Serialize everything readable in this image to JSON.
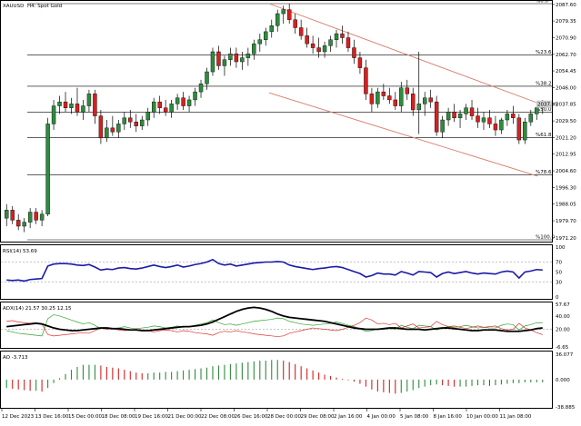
{
  "header": {
    "symbol": "XAUUSD",
    "timeframe_desc": "H4: Spot Gold"
  },
  "colors": {
    "bull": "#2e8b3e",
    "bear": "#d62020",
    "grid": "#000000",
    "channel": "#d97a6c",
    "rsi": "#1a1aa8",
    "adx": "#000000",
    "plus_di": "#2fa02f",
    "minus_di": "#e03030",
    "price_tag_bg": "#cfcfcf"
  },
  "chart_data": [
    {
      "type": "candlestick",
      "ylim": [
        1970.2,
        2088
      ],
      "y_ticks": [
        "2087.60",
        "2079.35",
        "2070.90",
        "2062.70",
        "2054.45",
        "2046.00",
        "2037.85",
        "2029.50",
        "2021.20",
        "2012.95",
        "2004.60",
        "1996.30",
        "1988.05",
        "1979.70",
        "1971.20"
      ],
      "price_tag": "2037.85",
      "current_price": 2037.85,
      "fib_levels": [
        {
          "label": "%0.0",
          "value": 2088.0
        },
        {
          "label": "%23.6",
          "value": 2062.3
        },
        {
          "label": "%38.2",
          "value": 2046.8
        },
        {
          "label": "%50.0",
          "value": 2033.9
        },
        {
          "label": "%61.8",
          "value": 2021.1
        },
        {
          "label": "%78.6",
          "value": 2002.7
        },
        {
          "label": "%100.0",
          "value": 1970.2
        }
      ],
      "channel_upper": [
        [
          0.49,
          2088.0
        ],
        [
          0.985,
          2038.5
        ]
      ],
      "channel_lower": [
        [
          0.49,
          2043.5
        ],
        [
          0.985,
          2002.0
        ]
      ],
      "candles": [
        [
          1981,
          1988,
          1977,
          1985
        ],
        [
          1985,
          1987,
          1978,
          1980
        ],
        [
          1980,
          1983,
          1975,
          1977
        ],
        [
          1977,
          1981,
          1974,
          1979
        ],
        [
          1979,
          1986,
          1976,
          1984
        ],
        [
          1984,
          1986,
          1978,
          1980
        ],
        [
          1980,
          1985,
          1977,
          1983
        ],
        [
          1983,
          2031,
          1982,
          2028
        ],
        [
          2028,
          2040,
          2025,
          2037
        ],
        [
          2037,
          2042,
          2033,
          2039
        ],
        [
          2039,
          2044,
          2034,
          2036
        ],
        [
          2036,
          2041,
          2033,
          2038
        ],
        [
          2038,
          2046,
          2032,
          2034
        ],
        [
          2034,
          2040,
          2030,
          2037
        ],
        [
          2037,
          2045,
          2034,
          2043
        ],
        [
          2043,
          2045,
          2028,
          2032
        ],
        [
          2032,
          2035,
          2018,
          2021
        ],
        [
          2021,
          2030,
          2019,
          2026
        ],
        [
          2026,
          2032,
          2022,
          2024
        ],
        [
          2024,
          2030,
          2021,
          2028
        ],
        [
          2028,
          2034,
          2025,
          2031
        ],
        [
          2031,
          2035,
          2026,
          2029
        ],
        [
          2029,
          2033,
          2024,
          2027
        ],
        [
          2027,
          2032,
          2025,
          2030
        ],
        [
          2030,
          2036,
          2027,
          2034
        ],
        [
          2034,
          2041,
          2031,
          2039
        ],
        [
          2039,
          2042,
          2033,
          2036
        ],
        [
          2036,
          2040,
          2032,
          2034
        ],
        [
          2034,
          2040,
          2031,
          2038
        ],
        [
          2038,
          2043,
          2035,
          2041
        ],
        [
          2041,
          2044,
          2035,
          2037
        ],
        [
          2037,
          2042,
          2034,
          2040
        ],
        [
          2040,
          2046,
          2037,
          2044
        ],
        [
          2044,
          2050,
          2041,
          2048
        ],
        [
          2048,
          2056,
          2045,
          2054
        ],
        [
          2054,
          2066,
          2052,
          2064
        ],
        [
          2064,
          2067,
          2055,
          2057
        ],
        [
          2057,
          2062,
          2052,
          2060
        ],
        [
          2060,
          2066,
          2057,
          2063
        ],
        [
          2063,
          2066,
          2056,
          2059
        ],
        [
          2059,
          2064,
          2055,
          2061
        ],
        [
          2061,
          2066,
          2057,
          2063
        ],
        [
          2063,
          2070,
          2060,
          2068
        ],
        [
          2068,
          2073,
          2064,
          2070
        ],
        [
          2070,
          2076,
          2067,
          2074
        ],
        [
          2074,
          2080,
          2071,
          2077
        ],
        [
          2077,
          2085,
          2074,
          2083
        ],
        [
          2083,
          2087,
          2078,
          2085
        ],
        [
          2085,
          2088,
          2078,
          2080
        ],
        [
          2080,
          2083,
          2073,
          2076
        ],
        [
          2076,
          2080,
          2070,
          2072
        ],
        [
          2072,
          2076,
          2066,
          2068
        ],
        [
          2068,
          2072,
          2063,
          2066
        ],
        [
          2066,
          2071,
          2061,
          2064
        ],
        [
          2064,
          2069,
          2061,
          2067
        ],
        [
          2067,
          2072,
          2064,
          2070
        ],
        [
          2070,
          2075,
          2066,
          2073
        ],
        [
          2073,
          2077,
          2068,
          2071
        ],
        [
          2071,
          2074,
          2064,
          2066
        ],
        [
          2066,
          2070,
          2058,
          2061
        ],
        [
          2061,
          2064,
          2053,
          2056
        ],
        [
          2056,
          2060,
          2040,
          2043
        ],
        [
          2043,
          2046,
          2034,
          2038
        ],
        [
          2038,
          2046,
          2036,
          2044
        ],
        [
          2044,
          2048,
          2040,
          2042
        ],
        [
          2042,
          2046,
          2038,
          2040
        ],
        [
          2040,
          2044,
          2035,
          2037
        ],
        [
          2037,
          2049,
          2034,
          2046
        ],
        [
          2046,
          2050,
          2040,
          2043
        ],
        [
          2043,
          2046,
          2032,
          2035
        ],
        [
          2035,
          2064,
          2023,
          2038
        ],
        [
          2038,
          2044,
          2032,
          2041
        ],
        [
          2041,
          2045,
          2036,
          2039
        ],
        [
          2039,
          2042,
          2022,
          2024
        ],
        [
          2024,
          2032,
          2021,
          2030
        ],
        [
          2030,
          2036,
          2027,
          2034
        ],
        [
          2034,
          2038,
          2029,
          2031
        ],
        [
          2031,
          2035,
          2026,
          2033
        ],
        [
          2033,
          2038,
          2030,
          2036
        ],
        [
          2036,
          2040,
          2030,
          2032
        ],
        [
          2032,
          2036,
          2026,
          2029
        ],
        [
          2029,
          2034,
          2025,
          2031
        ],
        [
          2031,
          2035,
          2026,
          2028
        ],
        [
          2028,
          2032,
          2022,
          2025
        ],
        [
          2025,
          2031,
          2023,
          2030
        ],
        [
          2030,
          2035,
          2027,
          2033
        ],
        [
          2033,
          2037,
          2028,
          2031
        ],
        [
          2031,
          2033,
          2018,
          2020
        ],
        [
          2020,
          2031,
          2018,
          2029
        ],
        [
          2029,
          2035,
          2027,
          2033
        ],
        [
          2033,
          2038,
          2030,
          2036
        ],
        [
          2036,
          2040,
          2033,
          2038
        ]
      ]
    },
    {
      "type": "line",
      "label": "RSI(14) 53.69",
      "ylim": [
        0,
        100
      ],
      "y_ticks": [
        100,
        70,
        50,
        30,
        0
      ],
      "levels": [
        70,
        30
      ],
      "series": [
        {
          "values": [
            34,
            33,
            34,
            32,
            35,
            36,
            37,
            62,
            66,
            67,
            67,
            66,
            64,
            63,
            65,
            60,
            54,
            56,
            55,
            58,
            59,
            57,
            56,
            58,
            61,
            64,
            61,
            59,
            61,
            64,
            60,
            62,
            65,
            67,
            70,
            75,
            67,
            64,
            66,
            62,
            64,
            66,
            68,
            69,
            70,
            70,
            71,
            70,
            64,
            61,
            59,
            57,
            55,
            57,
            58,
            60,
            61,
            59,
            55,
            51,
            47,
            40,
            43,
            48,
            46,
            46,
            44,
            51,
            48,
            44,
            51,
            50,
            49,
            40,
            47,
            50,
            47,
            49,
            51,
            48,
            46,
            48,
            47,
            46,
            50,
            52,
            50,
            38,
            50,
            52,
            55,
            54
          ]
        }
      ]
    },
    {
      "type": "line",
      "label": "ADX(14) 21.57 30.25 12.15",
      "ylim": [
        -6.65,
        57.67
      ],
      "y_ticks": [
        "57.67",
        "40.00",
        "20.00",
        "-6.65"
      ],
      "levels": [
        20
      ],
      "series": [
        {
          "name": "ADX",
          "values": [
            24,
            25,
            26,
            27,
            28,
            29,
            28,
            25,
            22,
            20,
            19,
            18,
            18,
            19,
            20,
            21,
            22,
            22,
            21,
            21,
            20,
            19,
            19,
            18,
            18,
            19,
            20,
            21,
            22,
            23,
            24,
            24,
            25,
            26,
            28,
            31,
            35,
            39,
            43,
            47,
            50,
            52,
            53,
            52,
            50,
            47,
            43,
            40,
            38,
            37,
            36,
            35,
            34,
            33,
            32,
            30,
            28,
            26,
            24,
            22,
            21,
            20,
            20,
            20,
            21,
            22,
            22,
            21,
            20,
            20,
            20,
            19,
            20,
            21,
            22,
            22,
            21,
            20,
            19,
            18,
            18,
            19,
            19,
            19,
            18,
            17,
            17,
            17,
            18,
            19,
            21,
            22
          ]
        },
        {
          "name": "+DI",
          "values": [
            18,
            16,
            14,
            13,
            12,
            11,
            10,
            36,
            42,
            40,
            37,
            34,
            31,
            28,
            30,
            26,
            21,
            22,
            21,
            22,
            24,
            22,
            21,
            22,
            23,
            25,
            24,
            22,
            23,
            25,
            23,
            24,
            26,
            28,
            30,
            34,
            30,
            27,
            28,
            26,
            28,
            30,
            32,
            33,
            34,
            35,
            37,
            36,
            32,
            30,
            28,
            27,
            26,
            27,
            28,
            29,
            31,
            29,
            26,
            24,
            21,
            17,
            18,
            21,
            20,
            21,
            20,
            26,
            23,
            21,
            26,
            25,
            24,
            19,
            22,
            24,
            23,
            24,
            26,
            24,
            22,
            23,
            22,
            22,
            26,
            28,
            27,
            19,
            25,
            27,
            30,
            30
          ]
        },
        {
          "name": "-DI",
          "values": [
            32,
            33,
            31,
            30,
            29,
            30,
            28,
            12,
            10,
            11,
            12,
            13,
            14,
            15,
            14,
            18,
            22,
            20,
            21,
            19,
            18,
            19,
            20,
            19,
            18,
            16,
            18,
            19,
            18,
            16,
            18,
            17,
            15,
            14,
            13,
            11,
            15,
            17,
            16,
            18,
            16,
            15,
            13,
            12,
            11,
            10,
            9,
            10,
            14,
            16,
            18,
            20,
            22,
            21,
            20,
            19,
            18,
            20,
            23,
            26,
            30,
            37,
            34,
            28,
            29,
            27,
            29,
            22,
            25,
            28,
            22,
            23,
            24,
            32,
            27,
            24,
            25,
            23,
            21,
            23,
            25,
            23,
            24,
            25,
            21,
            19,
            20,
            29,
            22,
            19,
            15,
            12
          ]
        }
      ]
    },
    {
      "type": "bar",
      "label": "AO -3.713",
      "ylim": [
        -38.885,
        36.077
      ],
      "y_ticks": [
        "36.077",
        "0.000",
        "-38.885"
      ],
      "values": [
        -12,
        -13,
        -14,
        -15,
        -16,
        -16,
        -17,
        -12,
        -5,
        2,
        8,
        14,
        18,
        21,
        21,
        21,
        20,
        18,
        17,
        16,
        14,
        12,
        10,
        9,
        9,
        10,
        10,
        11,
        11,
        12,
        13,
        14,
        15,
        16,
        17,
        19,
        20,
        21,
        22,
        23,
        24,
        25,
        26,
        27,
        27,
        28,
        28,
        27,
        25,
        22,
        19,
        16,
        13,
        10,
        7,
        5,
        3,
        1,
        -1,
        -3,
        -6,
        -10,
        -14,
        -17,
        -18,
        -19,
        -20,
        -19,
        -17,
        -15,
        -12,
        -10,
        -8,
        -7,
        -8,
        -9,
        -10,
        -10,
        -10,
        -9,
        -8,
        -8,
        -9,
        -8,
        -7,
        -6,
        -5,
        -5,
        -4,
        -4,
        -4,
        -4
      ]
    }
  ],
  "x_axis": {
    "labels": [
      "12 Dec 2023",
      "13 Dec 16:00",
      "15 Dec 00:00",
      "18 Dec 08:00",
      "19 Dec 16:00",
      "21 Dec 00:00",
      "22 Dec 08:00",
      "26 Dec 16:00",
      "28 Dec 00:00",
      "29 Dec 08:00",
      "2 Jan 16:00",
      "4 Jan 00:00",
      "5 Jan 08:00",
      "8 Jan 16:00",
      "10 Jan 00:00",
      "11 Jan 08:00"
    ]
  }
}
